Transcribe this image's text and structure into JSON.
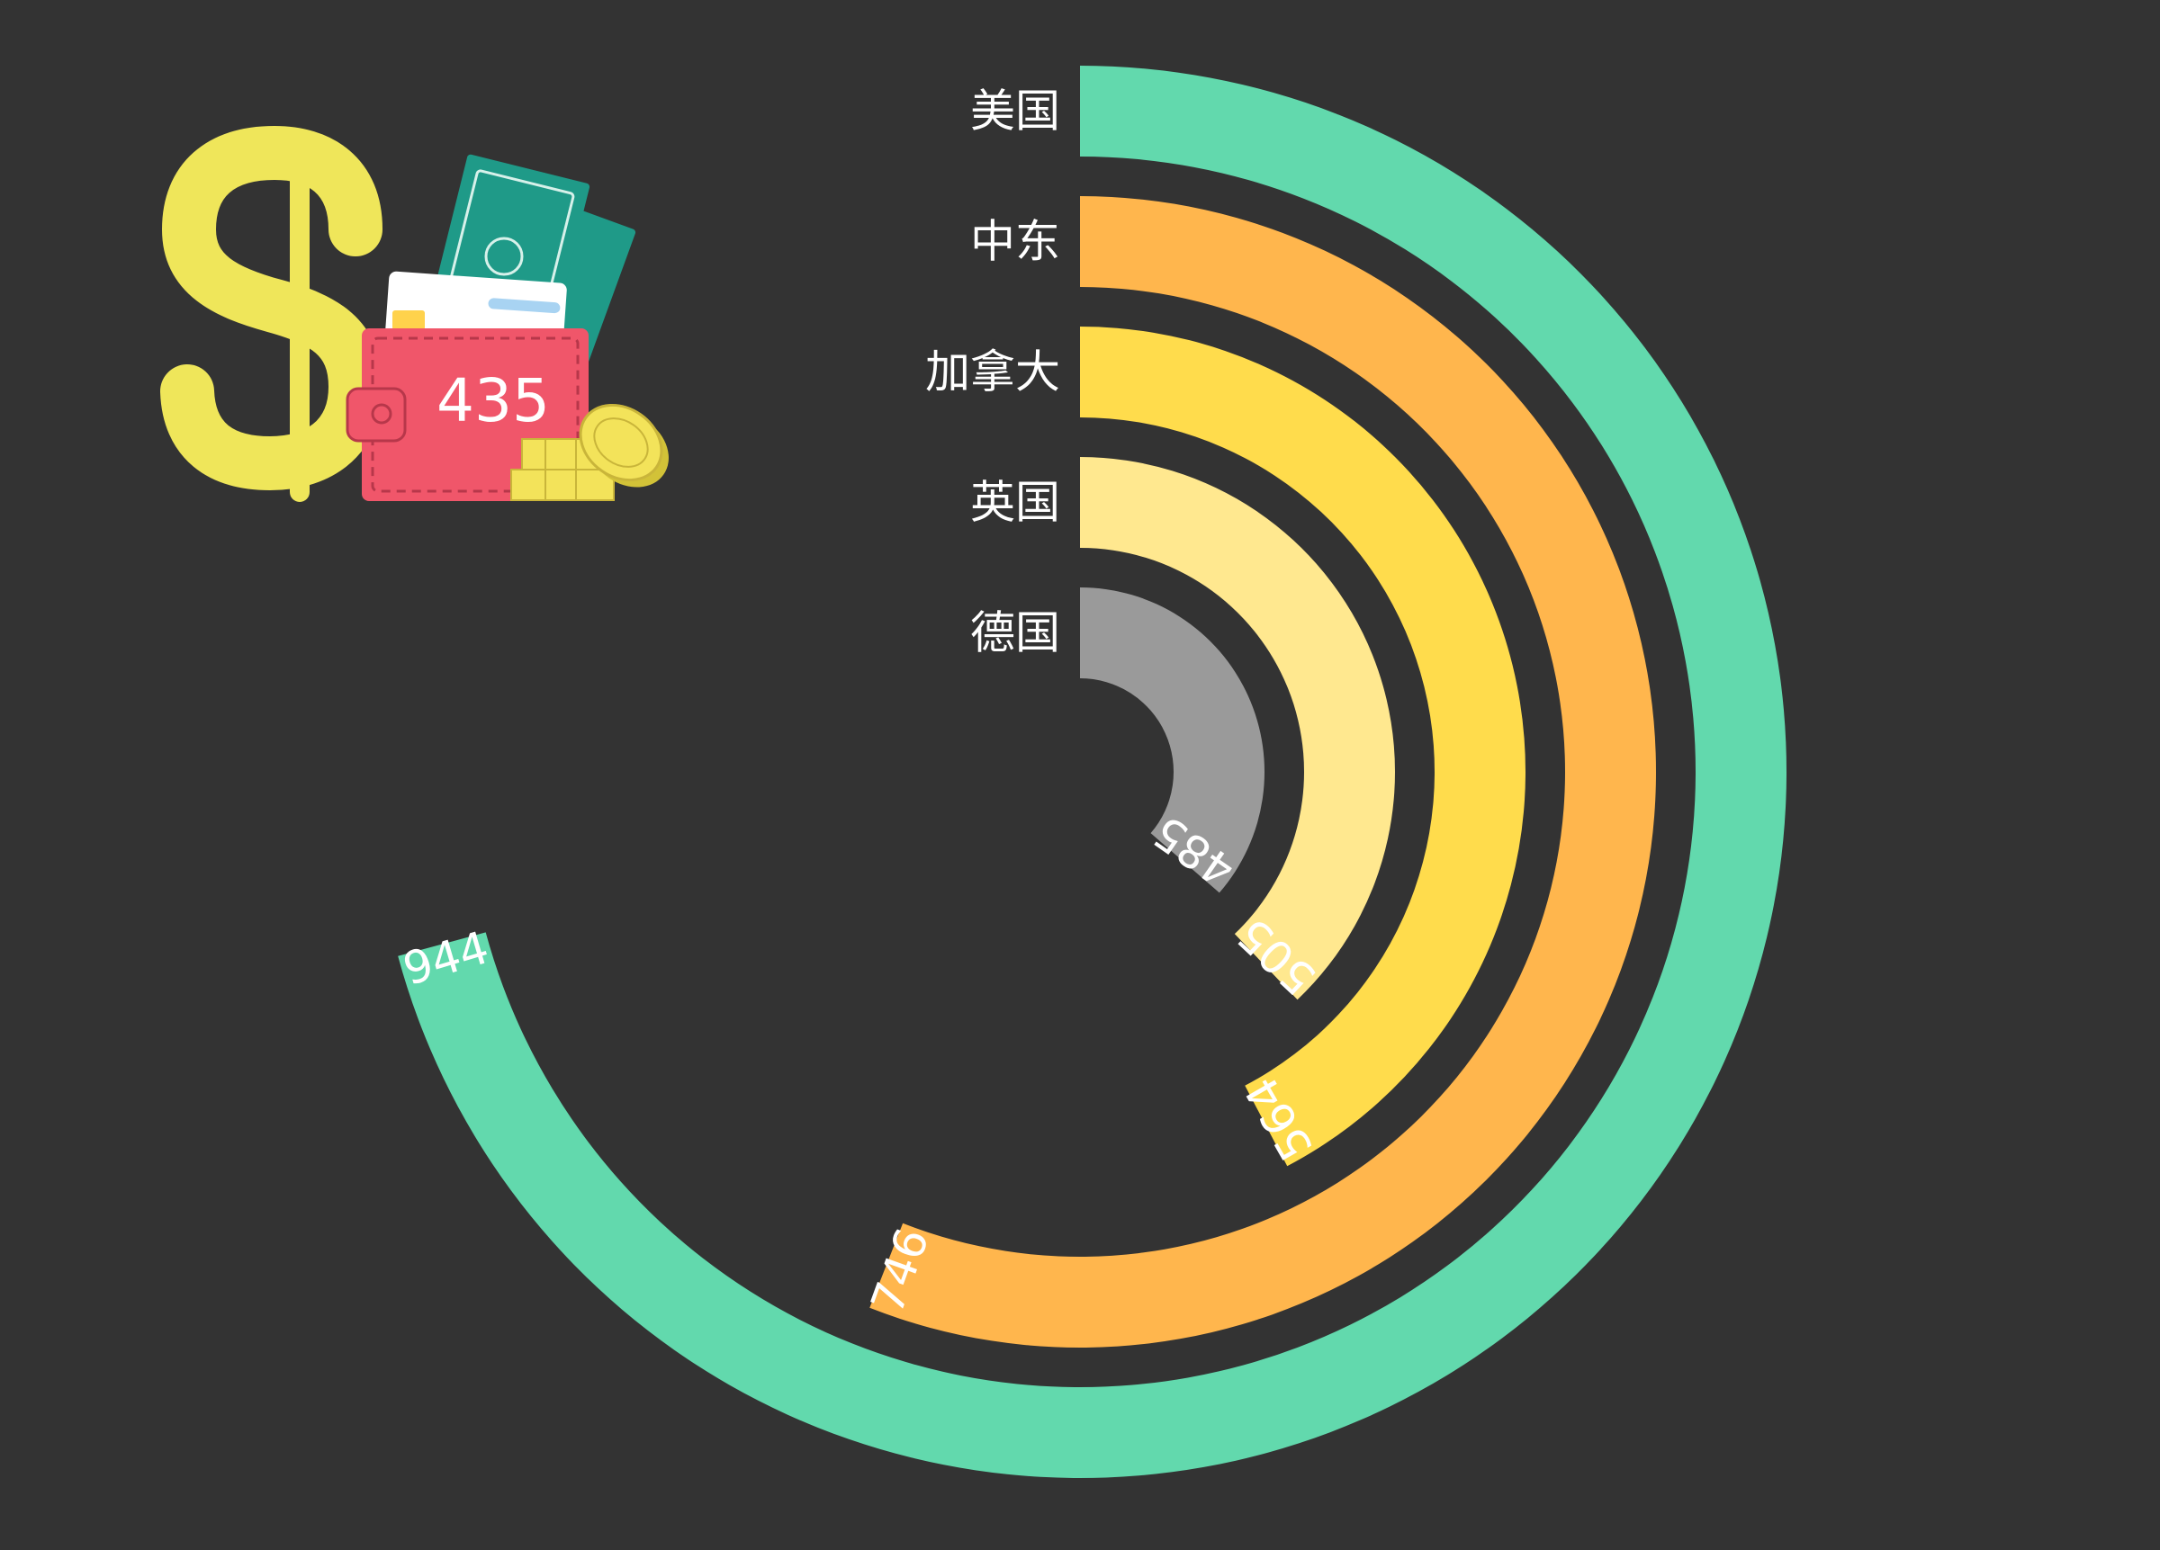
{
  "chart_data": {
    "type": "radial-bar",
    "categories": [
      "美国",
      "中东",
      "加拿大",
      "英国",
      "德国"
    ],
    "values": [
      944,
      746,
      564,
      505,
      485
    ],
    "colors": [
      "#62d9ad",
      "#ffb64d",
      "#ffdc4c",
      "#ffe88f",
      "#9a9a9a"
    ],
    "max": 1000
  },
  "badge": {
    "value": "435",
    "icon": "money-wallet-icon"
  },
  "colors": {
    "background": "#333333",
    "dollar": "#efe65a",
    "wallet": "#f0566a",
    "cash": "#1f9a88",
    "coins": "#f3e35a"
  }
}
